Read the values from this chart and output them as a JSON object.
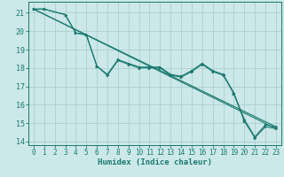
{
  "title": "",
  "xlabel": "Humidex (Indice chaleur)",
  "ylabel": "",
  "bg_color": "#cce8e8",
  "grid_color": "#aacfcf",
  "line_color": "#1a7a6e",
  "xlim": [
    -0.5,
    23.5
  ],
  "ylim": [
    13.8,
    21.6
  ],
  "yticks": [
    14,
    15,
    16,
    17,
    18,
    19,
    20,
    21
  ],
  "xticks": [
    0,
    1,
    2,
    3,
    4,
    5,
    6,
    7,
    8,
    9,
    10,
    11,
    12,
    13,
    14,
    15,
    16,
    17,
    18,
    19,
    20,
    21,
    22,
    23
  ],
  "series_wiggly": [
    {
      "x": [
        0,
        1,
        3,
        4,
        5,
        6,
        7,
        8,
        9,
        10,
        11,
        12,
        13,
        14,
        15,
        16,
        17,
        18,
        19,
        20,
        21,
        22,
        23
      ],
      "y": [
        21.2,
        21.2,
        20.9,
        19.9,
        19.8,
        18.1,
        17.6,
        18.4,
        18.2,
        18.0,
        18.0,
        18.0,
        17.6,
        17.5,
        17.8,
        18.2,
        17.8,
        17.6,
        16.6,
        15.1,
        14.2,
        14.8,
        14.7
      ]
    },
    {
      "x": [
        0,
        1,
        3,
        4,
        5,
        6,
        7,
        8,
        9,
        10,
        11,
        12,
        13,
        14,
        15,
        16,
        17,
        18,
        19,
        20,
        21,
        22,
        23
      ],
      "y": [
        21.2,
        21.2,
        20.9,
        19.9,
        19.8,
        18.1,
        17.65,
        18.45,
        18.25,
        18.05,
        18.05,
        18.05,
        17.65,
        17.55,
        17.85,
        18.25,
        17.85,
        17.65,
        16.65,
        15.2,
        14.25,
        14.9,
        14.8
      ]
    }
  ],
  "series_straight": [
    {
      "x": [
        0,
        23
      ],
      "y": [
        21.2,
        14.7
      ]
    },
    {
      "x": [
        0,
        23
      ],
      "y": [
        21.2,
        14.8
      ]
    }
  ]
}
